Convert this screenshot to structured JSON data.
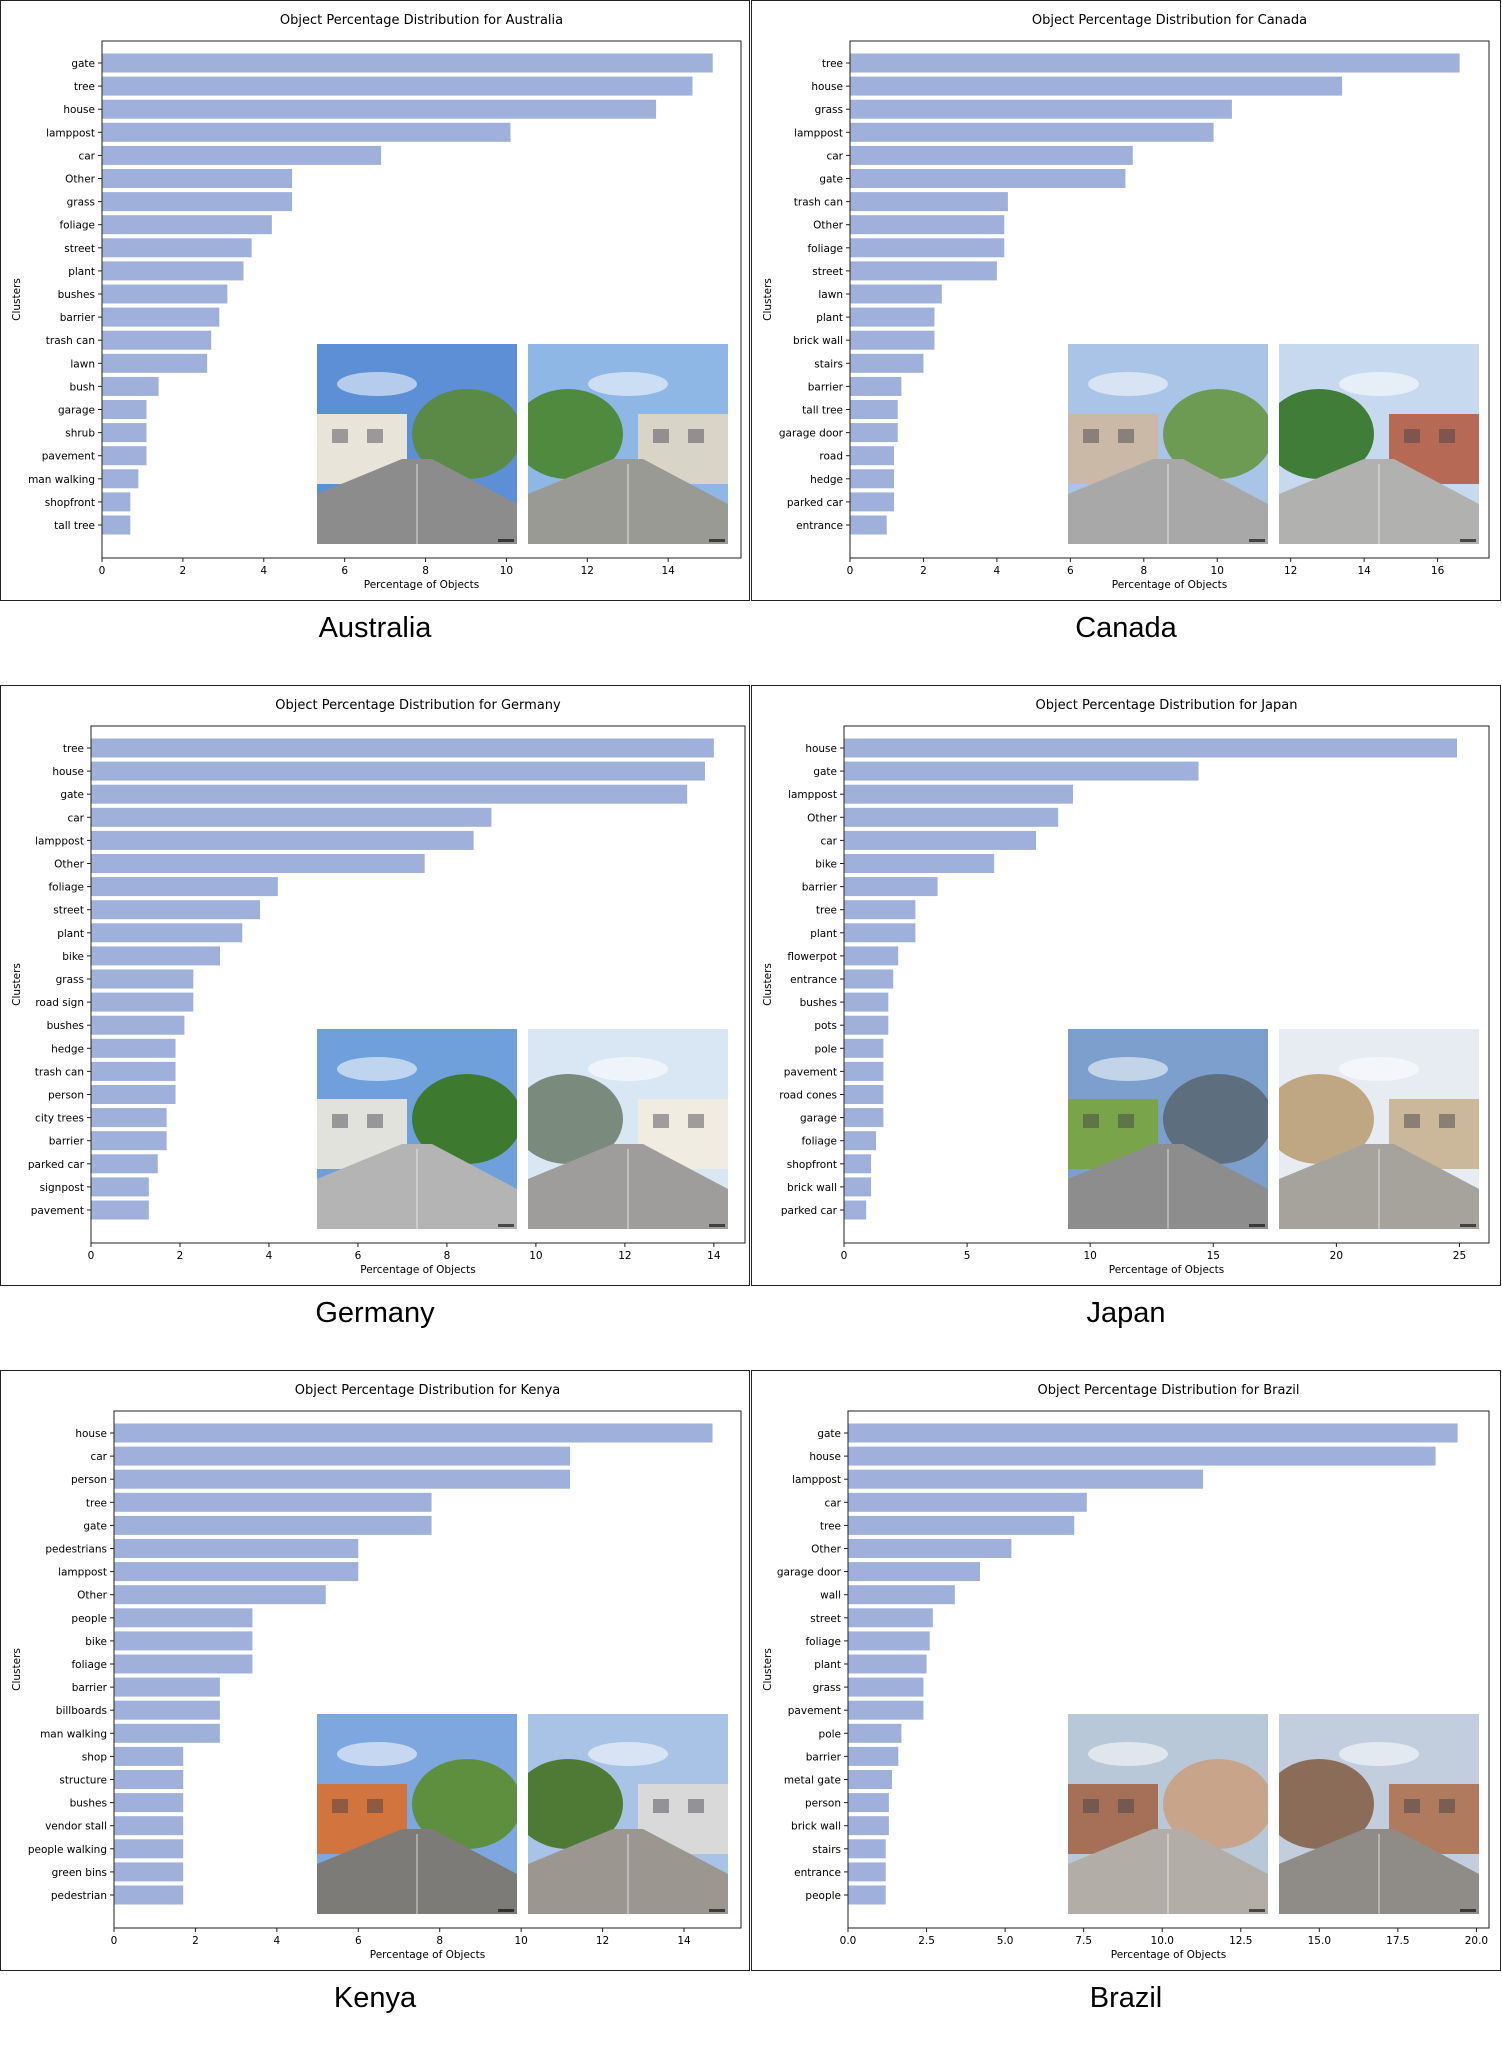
{
  "colors": {
    "bar": "#9fb1da",
    "axis": "#222222"
  },
  "panels": [
    {
      "country": "Australia",
      "chart_data": {
        "type": "bar",
        "orientation": "horizontal",
        "title": "Object Percentage Distribution for Australia",
        "xlabel": "Percentage of Objects",
        "ylabel": "Clusters",
        "xlim": [
          0,
          15.8
        ],
        "xticks": [
          0,
          2,
          4,
          6,
          8,
          10,
          12,
          14
        ],
        "xtick_labels": [
          "0",
          "2",
          "4",
          "6",
          "8",
          "10",
          "12",
          "14"
        ],
        "categories": [
          "gate",
          "tree",
          "house",
          "lamppost",
          "car",
          "Other",
          "grass",
          "foliage",
          "street",
          "plant",
          "bushes",
          "barrier",
          "trash can",
          "lawn",
          "bush",
          "garage",
          "shrub",
          "pavement",
          "man walking",
          "shopfront",
          "tall tree"
        ],
        "values": [
          15.1,
          14.6,
          13.7,
          10.1,
          6.9,
          4.7,
          4.7,
          4.2,
          3.7,
          3.5,
          3.1,
          2.9,
          2.7,
          2.6,
          1.4,
          1.1,
          1.1,
          1.1,
          0.9,
          0.7,
          0.7
        ]
      }
    },
    {
      "country": "Canada",
      "chart_data": {
        "type": "bar",
        "orientation": "horizontal",
        "title": "Object Percentage Distribution for Canada",
        "xlabel": "Percentage of Objects",
        "ylabel": "Clusters",
        "xlim": [
          0,
          17.4
        ],
        "xticks": [
          0,
          2,
          4,
          6,
          8,
          10,
          12,
          14,
          16
        ],
        "xtick_labels": [
          "0",
          "2",
          "4",
          "6",
          "8",
          "10",
          "12",
          "14",
          "16"
        ],
        "categories": [
          "tree",
          "house",
          "grass",
          "lamppost",
          "car",
          "gate",
          "trash can",
          "Other",
          "foliage",
          "street",
          "lawn",
          "plant",
          "brick wall",
          "stairs",
          "barrier",
          "tall tree",
          "garage door",
          "road",
          "hedge",
          "parked car",
          "entrance"
        ],
        "values": [
          16.6,
          13.4,
          10.4,
          9.9,
          7.7,
          7.5,
          4.3,
          4.2,
          4.2,
          4.0,
          2.5,
          2.3,
          2.3,
          2.0,
          1.4,
          1.3,
          1.3,
          1.2,
          1.2,
          1.2,
          1.0
        ]
      }
    },
    {
      "country": "Germany",
      "chart_data": {
        "type": "bar",
        "orientation": "horizontal",
        "title": "Object Percentage Distribution for Germany",
        "xlabel": "Percentage of Objects",
        "ylabel": "Clusters",
        "xlim": [
          0,
          14.7
        ],
        "xticks": [
          0,
          2,
          4,
          6,
          8,
          10,
          12,
          14
        ],
        "xtick_labels": [
          "0",
          "2",
          "4",
          "6",
          "8",
          "10",
          "12",
          "14"
        ],
        "categories": [
          "tree",
          "house",
          "gate",
          "car",
          "lamppost",
          "Other",
          "foliage",
          "street",
          "plant",
          "bike",
          "grass",
          "road sign",
          "bushes",
          "hedge",
          "trash can",
          "person",
          "city trees",
          "barrier",
          "parked car",
          "signpost",
          "pavement"
        ],
        "values": [
          14.0,
          13.8,
          13.4,
          9.0,
          8.6,
          7.5,
          4.2,
          3.8,
          3.4,
          2.9,
          2.3,
          2.3,
          2.1,
          1.9,
          1.9,
          1.9,
          1.7,
          1.7,
          1.5,
          1.3,
          1.3
        ]
      }
    },
    {
      "country": "Japan",
      "chart_data": {
        "type": "bar",
        "orientation": "horizontal",
        "title": "Object Percentage Distribution for Japan",
        "xlabel": "Percentage of Objects",
        "ylabel": "Clusters",
        "xlim": [
          0,
          26.2
        ],
        "xticks": [
          0,
          5,
          10,
          15,
          20,
          25
        ],
        "xtick_labels": [
          "0",
          "5",
          "10",
          "15",
          "20",
          "25"
        ],
        "categories": [
          "house",
          "gate",
          "lamppost",
          "Other",
          "car",
          "bike",
          "barrier",
          "tree",
          "plant",
          "flowerpot",
          "entrance",
          "bushes",
          "pots",
          "pole",
          "pavement",
          "road cones",
          "garage",
          "foliage",
          "shopfront",
          "brick wall",
          "parked car"
        ],
        "values": [
          24.9,
          14.4,
          9.3,
          8.7,
          7.8,
          6.1,
          3.8,
          2.9,
          2.9,
          2.2,
          2.0,
          1.8,
          1.8,
          1.6,
          1.6,
          1.6,
          1.6,
          1.3,
          1.1,
          1.1,
          0.9
        ]
      }
    },
    {
      "country": "Kenya",
      "chart_data": {
        "type": "bar",
        "orientation": "horizontal",
        "title": "Object Percentage Distribution for Kenya",
        "xlabel": "Percentage of Objects",
        "ylabel": "Clusters",
        "xlim": [
          0,
          15.4
        ],
        "xticks": [
          0,
          2,
          4,
          6,
          8,
          10,
          12,
          14
        ],
        "xtick_labels": [
          "0",
          "2",
          "4",
          "6",
          "8",
          "10",
          "12",
          "14"
        ],
        "categories": [
          "house",
          "car",
          "person",
          "tree",
          "gate",
          "pedestrians",
          "lamppost",
          "Other",
          "people",
          "bike",
          "foliage",
          "barrier",
          "billboards",
          "man walking",
          "shop",
          "structure",
          "bushes",
          "vendor stall",
          "people walking",
          "green bins",
          "pedestrian"
        ],
        "values": [
          14.7,
          11.2,
          11.2,
          7.8,
          7.8,
          6.0,
          6.0,
          5.2,
          3.4,
          3.4,
          3.4,
          2.6,
          2.6,
          2.6,
          1.7,
          1.7,
          1.7,
          1.7,
          1.7,
          1.7,
          1.7
        ]
      }
    },
    {
      "country": "Brazil",
      "chart_data": {
        "type": "bar",
        "orientation": "horizontal",
        "title": "Object Percentage Distribution for Brazil",
        "xlabel": "Percentage of Objects",
        "ylabel": "Clusters",
        "xlim": [
          0,
          20.4
        ],
        "xticks": [
          0,
          2.5,
          5,
          7.5,
          10,
          12.5,
          15,
          17.5,
          20
        ],
        "xtick_labels": [
          "0.0",
          "2.5",
          "5.0",
          "7.5",
          "10.0",
          "12.5",
          "15.0",
          "17.5",
          "20.0"
        ],
        "categories": [
          "gate",
          "house",
          "lamppost",
          "car",
          "tree",
          "Other",
          "garage door",
          "wall",
          "street",
          "foliage",
          "plant",
          "grass",
          "pavement",
          "pole",
          "barrier",
          "metal gate",
          "person",
          "brick wall",
          "stairs",
          "entrance",
          "people"
        ],
        "values": [
          19.4,
          18.7,
          11.3,
          7.6,
          7.2,
          5.2,
          4.2,
          3.4,
          2.7,
          2.6,
          2.5,
          2.4,
          2.4,
          1.7,
          1.6,
          1.4,
          1.3,
          1.3,
          1.2,
          1.2,
          1.2
        ]
      }
    }
  ]
}
